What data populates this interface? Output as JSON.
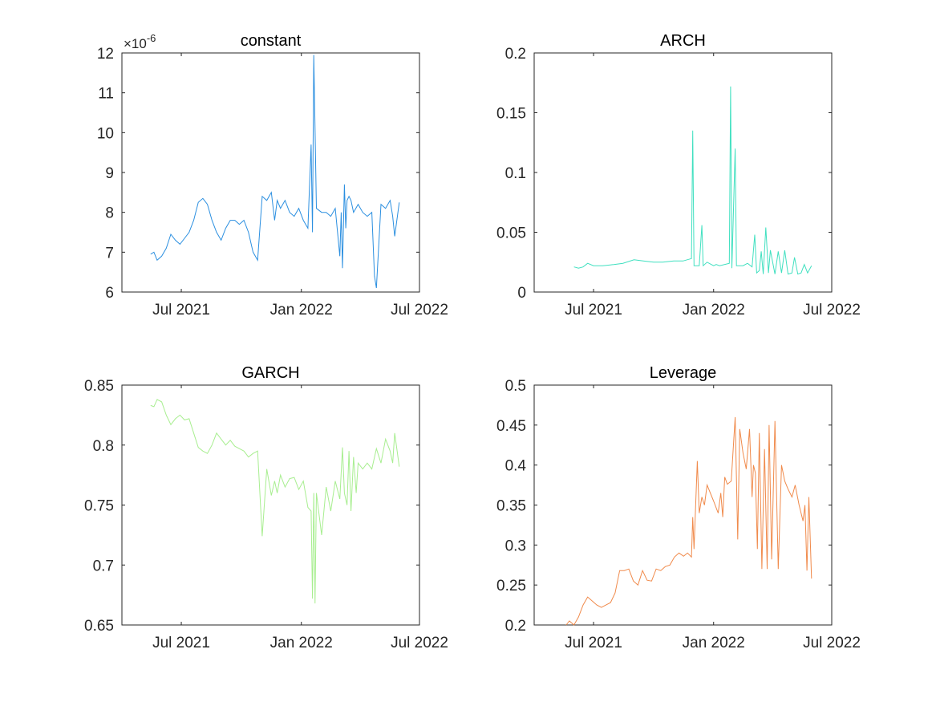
{
  "chart_data": [
    {
      "type": "line",
      "title": "constant",
      "exponent_label": "×10",
      "exponent_power": "-6",
      "color": "#2b8fe0",
      "xlim": [
        "2021-04-01",
        "2022-07-01"
      ],
      "ylim": [
        6,
        12
      ],
      "xticks": [
        {
          "date": "2021-07-01",
          "label": "Jul 2021"
        },
        {
          "date": "2022-01-01",
          "label": "Jan 2022"
        },
        {
          "date": "2022-07-01",
          "label": "Jul 2022"
        }
      ],
      "yticks": [
        {
          "value": 6,
          "label": "6"
        },
        {
          "value": 7,
          "label": "7"
        },
        {
          "value": 8,
          "label": "8"
        },
        {
          "value": 9,
          "label": "9"
        },
        {
          "value": 10,
          "label": "10"
        },
        {
          "value": 11,
          "label": "11"
        },
        {
          "value": 12,
          "label": "12"
        }
      ],
      "x": [
        "2021-05-15",
        "2021-05-20",
        "2021-05-25",
        "2021-06-01",
        "2021-06-08",
        "2021-06-15",
        "2021-06-22",
        "2021-06-29",
        "2021-07-06",
        "2021-07-13",
        "2021-07-20",
        "2021-07-27",
        "2021-08-03",
        "2021-08-10",
        "2021-08-17",
        "2021-08-24",
        "2021-08-31",
        "2021-09-07",
        "2021-09-14",
        "2021-09-21",
        "2021-09-28",
        "2021-10-05",
        "2021-10-12",
        "2021-10-19",
        "2021-10-26",
        "2021-11-02",
        "2021-11-09",
        "2021-11-16",
        "2021-11-21",
        "2021-11-25",
        "2021-11-30",
        "2021-12-07",
        "2021-12-14",
        "2021-12-21",
        "2021-12-28",
        "2022-01-04",
        "2022-01-11",
        "2022-01-16",
        "2022-01-18",
        "2022-01-20",
        "2022-01-24",
        "2022-02-01",
        "2022-02-08",
        "2022-02-15",
        "2022-02-22",
        "2022-03-01",
        "2022-03-03",
        "2022-03-05",
        "2022-03-08",
        "2022-03-10",
        "2022-03-12",
        "2022-03-15",
        "2022-03-18",
        "2022-03-22",
        "2022-03-29",
        "2022-04-05",
        "2022-04-12",
        "2022-04-19",
        "2022-04-23",
        "2022-04-26",
        "2022-05-03",
        "2022-05-10",
        "2022-05-17",
        "2022-05-21",
        "2022-05-24",
        "2022-05-31"
      ],
      "values": [
        6.95,
        7.0,
        6.8,
        6.9,
        7.1,
        7.45,
        7.3,
        7.2,
        7.35,
        7.5,
        7.8,
        8.25,
        8.35,
        8.2,
        7.8,
        7.5,
        7.3,
        7.6,
        7.8,
        7.8,
        7.7,
        7.8,
        7.5,
        7.0,
        6.8,
        8.4,
        8.3,
        8.5,
        7.8,
        8.3,
        8.1,
        8.3,
        8.0,
        7.9,
        8.1,
        7.8,
        7.6,
        9.7,
        7.5,
        11.95,
        8.1,
        8.0,
        8.0,
        7.9,
        8.1,
        6.9,
        8.0,
        6.6,
        8.7,
        7.6,
        8.3,
        8.4,
        8.3,
        8.0,
        8.2,
        8.0,
        7.9,
        8.0,
        6.4,
        6.1,
        8.2,
        8.1,
        8.3,
        7.9,
        7.4,
        8.25
      ]
    },
    {
      "type": "line",
      "title": "ARCH",
      "color": "#40e0c0",
      "xlim": [
        "2021-04-01",
        "2022-07-01"
      ],
      "ylim": [
        0,
        0.2
      ],
      "xticks": [
        {
          "date": "2021-07-01",
          "label": "Jul 2021"
        },
        {
          "date": "2022-01-01",
          "label": "Jan 2022"
        },
        {
          "date": "2022-07-01",
          "label": "Jul 2022"
        }
      ],
      "yticks": [
        {
          "value": 0,
          "label": "0"
        },
        {
          "value": 0.05,
          "label": "0.05"
        },
        {
          "value": 0.1,
          "label": "0.1"
        },
        {
          "value": 0.15,
          "label": "0.15"
        },
        {
          "value": 0.2,
          "label": "0.2"
        }
      ],
      "x": [
        "2021-06-01",
        "2021-06-08",
        "2021-06-15",
        "2021-06-22",
        "2021-07-01",
        "2021-07-15",
        "2021-08-01",
        "2021-08-15",
        "2021-09-01",
        "2021-09-15",
        "2021-10-01",
        "2021-10-15",
        "2021-11-01",
        "2021-11-15",
        "2021-11-28",
        "2021-11-30",
        "2021-12-02",
        "2021-12-10",
        "2021-12-14",
        "2021-12-16",
        "2021-12-22",
        "2022-01-01",
        "2022-01-05",
        "2022-01-10",
        "2022-01-25",
        "2022-01-27",
        "2022-01-29",
        "2022-02-03",
        "2022-02-05",
        "2022-02-15",
        "2022-02-22",
        "2022-03-01",
        "2022-03-05",
        "2022-03-08",
        "2022-03-12",
        "2022-03-15",
        "2022-03-18",
        "2022-03-22",
        "2022-03-26",
        "2022-03-29",
        "2022-04-05",
        "2022-04-10",
        "2022-04-15",
        "2022-04-20",
        "2022-04-25",
        "2022-05-01",
        "2022-05-05",
        "2022-05-10",
        "2022-05-15",
        "2022-05-20",
        "2022-05-25",
        "2022-05-31"
      ],
      "values": [
        0.021,
        0.02,
        0.021,
        0.024,
        0.022,
        0.022,
        0.023,
        0.024,
        0.027,
        0.026,
        0.025,
        0.025,
        0.026,
        0.026,
        0.028,
        0.135,
        0.022,
        0.022,
        0.056,
        0.022,
        0.025,
        0.022,
        0.023,
        0.022,
        0.024,
        0.172,
        0.02,
        0.12,
        0.022,
        0.022,
        0.024,
        0.021,
        0.048,
        0.016,
        0.018,
        0.034,
        0.015,
        0.054,
        0.016,
        0.035,
        0.015,
        0.034,
        0.016,
        0.035,
        0.015,
        0.016,
        0.029,
        0.015,
        0.016,
        0.023,
        0.016,
        0.022
      ]
    },
    {
      "type": "line",
      "title": "GARCH",
      "color": "#a8ee90",
      "xlim": [
        "2021-04-01",
        "2022-07-01"
      ],
      "ylim": [
        0.65,
        0.85
      ],
      "xticks": [
        {
          "date": "2021-07-01",
          "label": "Jul 2021"
        },
        {
          "date": "2022-01-01",
          "label": "Jan 2022"
        },
        {
          "date": "2022-07-01",
          "label": "Jul 2022"
        }
      ],
      "yticks": [
        {
          "value": 0.65,
          "label": "0.65"
        },
        {
          "value": 0.7,
          "label": "0.7"
        },
        {
          "value": 0.75,
          "label": "0.75"
        },
        {
          "value": 0.8,
          "label": "0.8"
        },
        {
          "value": 0.85,
          "label": "0.85"
        }
      ],
      "x": [
        "2021-05-15",
        "2021-05-20",
        "2021-05-25",
        "2021-06-01",
        "2021-06-08",
        "2021-06-15",
        "2021-06-22",
        "2021-06-29",
        "2021-07-06",
        "2021-07-13",
        "2021-07-20",
        "2021-07-27",
        "2021-08-03",
        "2021-08-10",
        "2021-08-17",
        "2021-08-24",
        "2021-08-31",
        "2021-09-07",
        "2021-09-14",
        "2021-09-21",
        "2021-09-28",
        "2021-10-05",
        "2021-10-12",
        "2021-10-19",
        "2021-10-26",
        "2021-11-02",
        "2021-11-09",
        "2021-11-16",
        "2021-11-21",
        "2021-11-25",
        "2021-11-30",
        "2021-12-07",
        "2021-12-14",
        "2021-12-21",
        "2021-12-28",
        "2022-01-04",
        "2022-01-11",
        "2022-01-16",
        "2022-01-18",
        "2022-01-20",
        "2022-01-22",
        "2022-01-24",
        "2022-02-01",
        "2022-02-08",
        "2022-02-15",
        "2022-02-22",
        "2022-03-01",
        "2022-03-05",
        "2022-03-08",
        "2022-03-12",
        "2022-03-15",
        "2022-03-18",
        "2022-03-22",
        "2022-03-26",
        "2022-03-29",
        "2022-04-05",
        "2022-04-12",
        "2022-04-19",
        "2022-04-26",
        "2022-05-03",
        "2022-05-10",
        "2022-05-17",
        "2022-05-21",
        "2022-05-24",
        "2022-05-31"
      ],
      "values": [
        0.833,
        0.832,
        0.838,
        0.836,
        0.825,
        0.817,
        0.822,
        0.825,
        0.821,
        0.822,
        0.81,
        0.798,
        0.795,
        0.793,
        0.8,
        0.81,
        0.805,
        0.8,
        0.804,
        0.799,
        0.797,
        0.795,
        0.79,
        0.793,
        0.795,
        0.724,
        0.78,
        0.758,
        0.77,
        0.76,
        0.775,
        0.765,
        0.772,
        0.773,
        0.763,
        0.77,
        0.748,
        0.745,
        0.672,
        0.76,
        0.668,
        0.76,
        0.725,
        0.765,
        0.745,
        0.77,
        0.755,
        0.798,
        0.76,
        0.75,
        0.795,
        0.745,
        0.79,
        0.76,
        0.785,
        0.78,
        0.785,
        0.78,
        0.797,
        0.785,
        0.805,
        0.795,
        0.785,
        0.81,
        0.782
      ]
    },
    {
      "type": "line",
      "title": "Leverage",
      "color": "#f08a4b",
      "xlim": [
        "2021-04-01",
        "2022-07-01"
      ],
      "ylim": [
        0.2,
        0.5
      ],
      "xticks": [
        {
          "date": "2021-07-01",
          "label": "Jul 2021"
        },
        {
          "date": "2022-01-01",
          "label": "Jan 2022"
        },
        {
          "date": "2022-07-01",
          "label": "Jul 2022"
        }
      ],
      "yticks": [
        {
          "value": 0.2,
          "label": "0.2"
        },
        {
          "value": 0.25,
          "label": "0.25"
        },
        {
          "value": 0.3,
          "label": "0.3"
        },
        {
          "value": 0.35,
          "label": "0.35"
        },
        {
          "value": 0.4,
          "label": "0.4"
        },
        {
          "value": 0.45,
          "label": "0.45"
        },
        {
          "value": 0.5,
          "label": "0.5"
        }
      ],
      "x": [
        "2021-05-20",
        "2021-05-25",
        "2021-06-01",
        "2021-06-08",
        "2021-06-15",
        "2021-06-22",
        "2021-06-29",
        "2021-07-06",
        "2021-07-13",
        "2021-07-20",
        "2021-07-27",
        "2021-08-03",
        "2021-08-10",
        "2021-08-17",
        "2021-08-24",
        "2021-08-31",
        "2021-09-07",
        "2021-09-14",
        "2021-09-21",
        "2021-09-28",
        "2021-10-05",
        "2021-10-12",
        "2021-10-19",
        "2021-10-26",
        "2021-11-02",
        "2021-11-09",
        "2021-11-16",
        "2021-11-22",
        "2021-11-28",
        "2021-11-30",
        "2021-12-02",
        "2021-12-07",
        "2021-12-10",
        "2021-12-14",
        "2021-12-18",
        "2021-12-22",
        "2022-01-01",
        "2022-01-08",
        "2022-01-12",
        "2022-01-15",
        "2022-01-18",
        "2022-01-22",
        "2022-01-28",
        "2022-02-03",
        "2022-02-07",
        "2022-02-10",
        "2022-02-15",
        "2022-02-20",
        "2022-02-25",
        "2022-03-01",
        "2022-03-03",
        "2022-03-06",
        "2022-03-09",
        "2022-03-12",
        "2022-03-16",
        "2022-03-20",
        "2022-03-24",
        "2022-03-27",
        "2022-03-31",
        "2022-04-05",
        "2022-04-10",
        "2022-04-15",
        "2022-04-20",
        "2022-04-25",
        "2022-05-01",
        "2022-05-06",
        "2022-05-12",
        "2022-05-18",
        "2022-05-21",
        "2022-05-24",
        "2022-05-27",
        "2022-05-31"
      ],
      "values": [
        0.2,
        0.205,
        0.2,
        0.21,
        0.225,
        0.235,
        0.23,
        0.225,
        0.222,
        0.225,
        0.228,
        0.24,
        0.268,
        0.268,
        0.27,
        0.255,
        0.25,
        0.268,
        0.256,
        0.255,
        0.27,
        0.268,
        0.273,
        0.275,
        0.285,
        0.29,
        0.286,
        0.29,
        0.285,
        0.335,
        0.295,
        0.405,
        0.34,
        0.36,
        0.35,
        0.375,
        0.355,
        0.34,
        0.365,
        0.335,
        0.385,
        0.376,
        0.38,
        0.46,
        0.307,
        0.445,
        0.415,
        0.395,
        0.445,
        0.36,
        0.4,
        0.39,
        0.295,
        0.44,
        0.27,
        0.42,
        0.27,
        0.45,
        0.282,
        0.455,
        0.27,
        0.4,
        0.38,
        0.37,
        0.36,
        0.375,
        0.35,
        0.33,
        0.35,
        0.268,
        0.36,
        0.258
      ]
    }
  ]
}
